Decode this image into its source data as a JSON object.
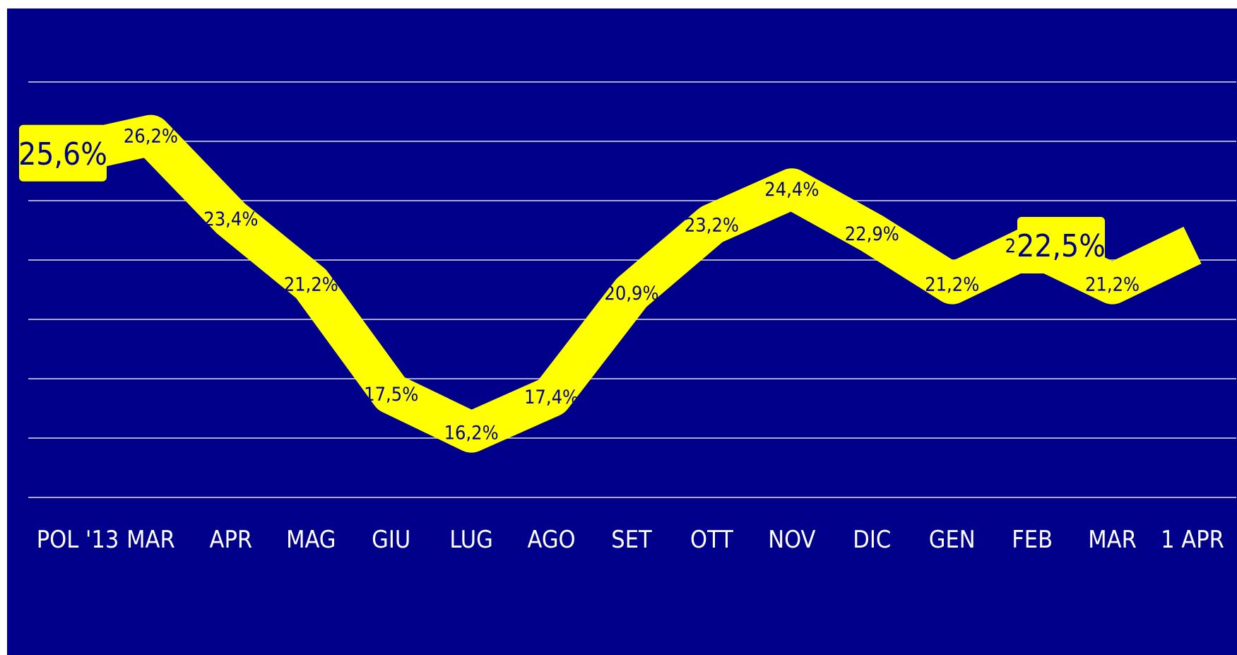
{
  "chart_data": {
    "type": "line",
    "title": "",
    "xlabel": "",
    "ylabel": "",
    "categories": [
      "POL '13",
      "MAR",
      "APR",
      "MAG",
      "GIU",
      "LUG",
      "AGO",
      "SET",
      "OTT",
      "NOV",
      "DIC",
      "GEN",
      "FEB",
      "MAR",
      "1 APR"
    ],
    "series": [
      {
        "values": [
          25.6,
          26.2,
          23.4,
          21.2,
          17.5,
          16.2,
          17.4,
          20.9,
          23.2,
          24.4,
          22.9,
          21.2,
          22.5,
          21.2,
          22.5
        ],
        "labels": [
          "25,6%",
          "26,2%",
          "23,4%",
          "21,2%",
          "17,5%",
          "16,2%",
          "17,4%",
          "20,9%",
          "23,2%",
          "24,4%",
          "22,9%",
          "21,2%",
          "22,5%",
          "21,2%",
          "22,5%"
        ]
      }
    ],
    "ylim": [
      14,
      28
    ],
    "grid": true,
    "legend": "none",
    "colors": {
      "background": "#00008b",
      "line": "#ffff00",
      "gridline": "#a9a9c8",
      "tick_text": "#ffffff",
      "label_text": "#00008b"
    }
  }
}
